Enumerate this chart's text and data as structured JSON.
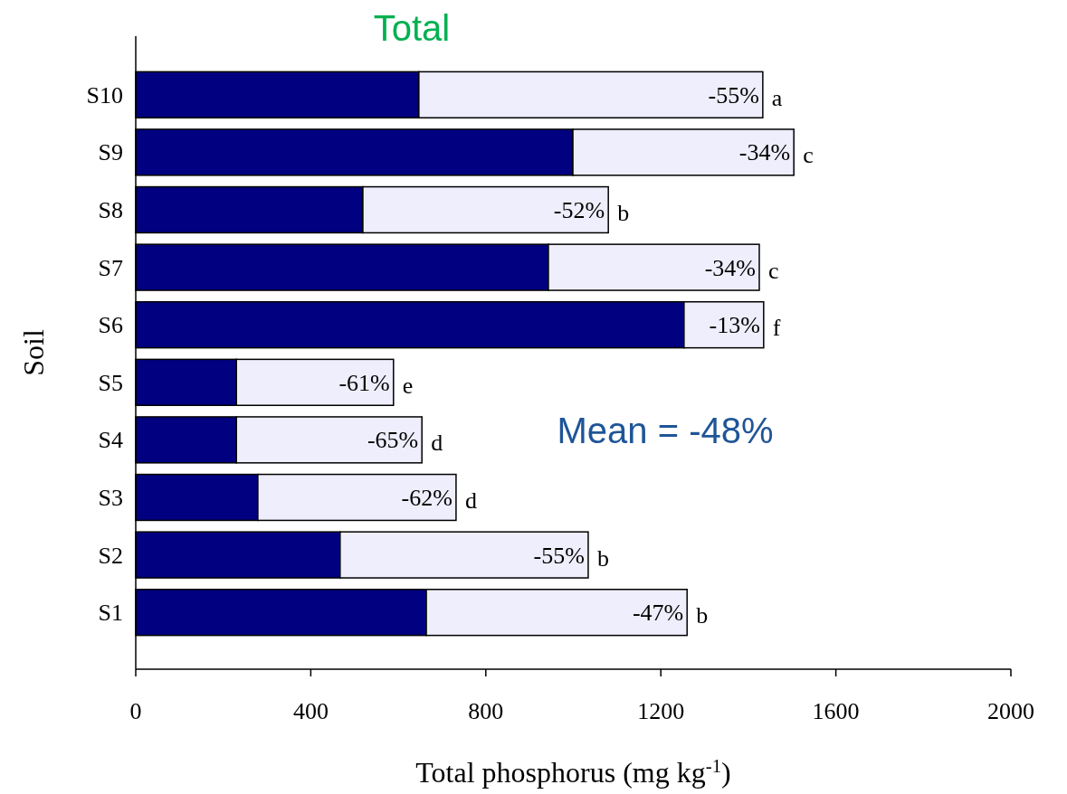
{
  "chart_data": {
    "type": "bar",
    "orientation": "horizontal",
    "stacked": true,
    "title": "Total",
    "xlabel": "Total phosphorus (mg kg$^{-1}$)",
    "ylabel": "Soil",
    "categories": [
      "S10",
      "S9",
      "S8",
      "S7",
      "S6",
      "S5",
      "S4",
      "S3",
      "S2",
      "S1"
    ],
    "series": [
      {
        "color": "#000080",
        "values": [
          647,
          999,
          519,
          943,
          1253,
          230,
          230,
          279,
          467,
          664
        ]
      },
      {
        "color": "#eeeefc",
        "values": [
          786,
          505,
          561,
          482,
          182,
          359,
          424,
          453,
          567,
          596
        ]
      }
    ],
    "xlim": [
      0,
      2000
    ],
    "xticks": [
      0,
      400,
      800,
      1200,
      1600,
      2000
    ],
    "grid": false,
    "annotations": [
      {
        "text": "-55%",
        "x": 1433,
        "y": "S10"
      },
      {
        "text": "-34%",
        "x": 1504,
        "y": "S9"
      },
      {
        "text": "-52%",
        "x": 1080,
        "y": "S8"
      },
      {
        "text": "-34%",
        "x": 1425,
        "y": "S7"
      },
      {
        "text": "-13%",
        "x": 1435,
        "y": "S6"
      },
      {
        "text": "-61%",
        "x": 589,
        "y": "S5"
      },
      {
        "text": "-65%",
        "x": 654,
        "y": "S4"
      },
      {
        "text": "-62%",
        "x": 732,
        "y": "S3"
      },
      {
        "text": "-55%",
        "x": 1034,
        "y": "S2"
      },
      {
        "text": "-47%",
        "x": 1260,
        "y": "S1"
      },
      {
        "text": "a",
        "x": 1433,
        "y": "S10"
      },
      {
        "text": "c",
        "x": 1504,
        "y": "S9"
      },
      {
        "text": "b",
        "x": 1080,
        "y": "S8"
      },
      {
        "text": "c",
        "x": 1425,
        "y": "S7"
      },
      {
        "text": "f",
        "x": 1435,
        "y": "S6"
      },
      {
        "text": "e",
        "x": 589,
        "y": "S5"
      },
      {
        "text": "d",
        "x": 654,
        "y": "S4"
      },
      {
        "text": "d",
        "x": 732,
        "y": "S3"
      },
      {
        "text": "b",
        "x": 1034,
        "y": "S2"
      },
      {
        "text": "b",
        "x": 1260,
        "y": "S1"
      },
      "Mean = -48%"
    ]
  }
}
